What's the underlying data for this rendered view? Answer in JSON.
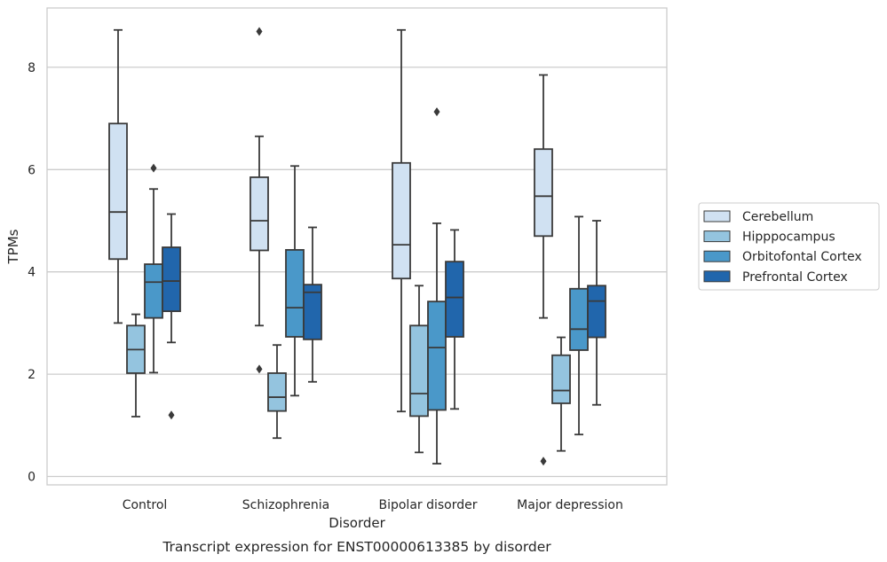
{
  "caption": "Transcript expression for ENST00000613385 by disorder",
  "chart_data": {
    "type": "boxplot",
    "xlabel": "Disorder",
    "ylabel": "TPMs",
    "categories": [
      "Control",
      "Schizophrenia",
      "Bipolar disorder",
      "Major depression"
    ],
    "yticks": [
      0,
      2,
      4,
      6,
      8
    ],
    "ylim": [
      -0.2,
      9.3
    ],
    "grid": "horizontal",
    "legend_position": "right",
    "series": [
      {
        "name": "Cerebellum",
        "color": "#d0e1f2",
        "boxes": [
          {
            "whisker_low": 3.0,
            "q1": 4.25,
            "median": 5.17,
            "q3": 6.9,
            "whisker_high": 8.73,
            "outliers": []
          },
          {
            "whisker_low": 2.95,
            "q1": 4.42,
            "median": 5.0,
            "q3": 5.85,
            "whisker_high": 6.65,
            "outliers": [
              2.1,
              8.7
            ]
          },
          {
            "whisker_low": 1.27,
            "q1": 3.87,
            "median": 4.53,
            "q3": 6.13,
            "whisker_high": 8.73,
            "outliers": []
          },
          {
            "whisker_low": 3.1,
            "q1": 4.7,
            "median": 5.48,
            "q3": 6.4,
            "whisker_high": 7.85,
            "outliers": [
              0.3
            ]
          }
        ]
      },
      {
        "name": "Hipppocampus",
        "color": "#94c4df",
        "boxes": [
          {
            "whisker_low": 1.17,
            "q1": 2.02,
            "median": 2.48,
            "q3": 2.95,
            "whisker_high": 3.17,
            "outliers": []
          },
          {
            "whisker_low": 0.75,
            "q1": 1.28,
            "median": 1.55,
            "q3": 2.02,
            "whisker_high": 2.57,
            "outliers": []
          },
          {
            "whisker_low": 0.47,
            "q1": 1.18,
            "median": 1.62,
            "q3": 2.95,
            "whisker_high": 3.73,
            "outliers": []
          },
          {
            "whisker_low": 0.5,
            "q1": 1.43,
            "median": 1.68,
            "q3": 2.37,
            "whisker_high": 2.72,
            "outliers": []
          }
        ]
      },
      {
        "name": "Orbitofontal Cortex",
        "color": "#4a98c9",
        "boxes": [
          {
            "whisker_low": 2.03,
            "q1": 3.1,
            "median": 3.8,
            "q3": 4.15,
            "whisker_high": 5.62,
            "outliers": [
              6.03
            ]
          },
          {
            "whisker_low": 1.58,
            "q1": 2.73,
            "median": 3.3,
            "q3": 4.43,
            "whisker_high": 6.07,
            "outliers": []
          },
          {
            "whisker_low": 0.25,
            "q1": 1.3,
            "median": 2.52,
            "q3": 3.42,
            "whisker_high": 4.95,
            "outliers": [
              7.13
            ]
          },
          {
            "whisker_low": 0.82,
            "q1": 2.47,
            "median": 2.88,
            "q3": 3.67,
            "whisker_high": 5.08,
            "outliers": []
          }
        ]
      },
      {
        "name": "Prefrontal Cortex",
        "color": "#2166ac",
        "boxes": [
          {
            "whisker_low": 2.62,
            "q1": 3.23,
            "median": 3.82,
            "q3": 4.48,
            "whisker_high": 5.13,
            "outliers": [
              1.2
            ]
          },
          {
            "whisker_low": 1.85,
            "q1": 2.68,
            "median": 3.6,
            "q3": 3.75,
            "whisker_high": 4.87,
            "outliers": []
          },
          {
            "whisker_low": 1.32,
            "q1": 2.73,
            "median": 3.5,
            "q3": 4.2,
            "whisker_high": 4.82,
            "outliers": []
          },
          {
            "whisker_low": 1.4,
            "q1": 2.72,
            "median": 3.43,
            "q3": 3.73,
            "whisker_high": 5.0,
            "outliers": []
          }
        ]
      }
    ]
  }
}
